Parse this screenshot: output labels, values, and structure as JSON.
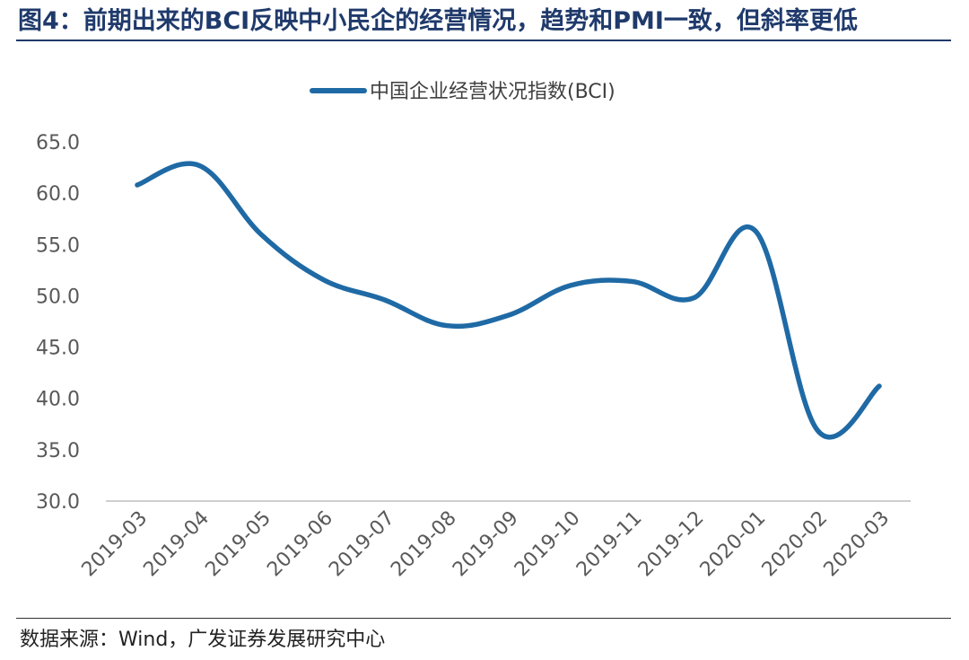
{
  "figure": {
    "title": "图4：前期出来的BCI反映中小民企的经营情况，趋势和PMI一致，但斜率更低",
    "source": "数据来源：Wind，广发证券发展研究中心"
  },
  "colors": {
    "series": "#1f6aa5",
    "title": "#1f3a6b",
    "axis": "#bfbfbf",
    "tick": "#595959"
  },
  "chart_data": {
    "type": "line",
    "title": "",
    "xlabel": "",
    "ylabel": "",
    "ylim": [
      30,
      65
    ],
    "yticks": [
      30,
      35,
      40,
      45,
      50,
      55,
      60,
      65
    ],
    "ytick_labels": [
      "30.0",
      "35.0",
      "40.0",
      "45.0",
      "50.0",
      "55.0",
      "60.0",
      "65.0"
    ],
    "categories": [
      "2019-03",
      "2019-04",
      "2019-05",
      "2019-06",
      "2019-07",
      "2019-08",
      "2019-09",
      "2019-10",
      "2019-11",
      "2019-12",
      "2020-01",
      "2020-02",
      "2020-03"
    ],
    "series": [
      {
        "name": "中国企业经营状况指数(BCI)",
        "values": [
          60.8,
          62.7,
          56.0,
          51.6,
          49.6,
          47.1,
          48.1,
          51.0,
          51.4,
          49.8,
          56.3,
          36.9,
          41.2
        ]
      }
    ],
    "legend": "top-center",
    "grid": false
  }
}
